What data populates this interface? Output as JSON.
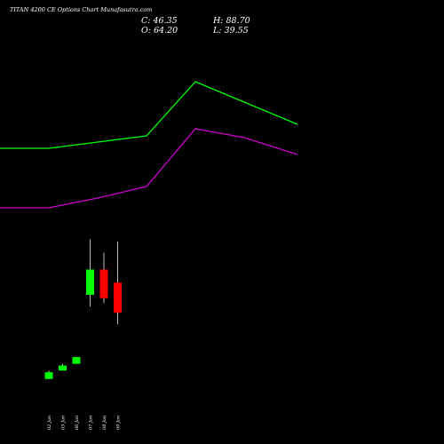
{
  "header": {
    "title": "TITAN 4200 CE Options Chart Munafasutra.com",
    "close": "C: 46.35",
    "high": "H: 88.70",
    "open": "O: 64.20",
    "low": "L: 39.55"
  },
  "chart_data": {
    "type": "candlestick",
    "title": "TITAN 4200 CE Options Chart Munafasutra.com",
    "categories": [
      "02 Jan",
      "03 Jan",
      "06 Jan",
      "07 Jan",
      "08 Jan",
      "09 Jan"
    ],
    "candles": [
      {
        "date": "02 Jan",
        "open": 7,
        "high": 12,
        "low": 7,
        "close": 11,
        "color": "#00ff00"
      },
      {
        "date": "03 Jan",
        "open": 12,
        "high": 16,
        "low": 12,
        "close": 15,
        "color": "#00ff00"
      },
      {
        "date": "06 Jan",
        "open": 16,
        "high": 20,
        "low": 16,
        "close": 20,
        "color": "#00ff00"
      },
      {
        "date": "07 Jan",
        "open": 57,
        "high": 90,
        "low": 50,
        "close": 72,
        "color": "#00ff00"
      },
      {
        "date": "08 Jan",
        "open": 72,
        "high": 82,
        "low": 52,
        "close": 55,
        "color": "#ff0000"
      },
      {
        "date": "09 Jan",
        "open": 64.2,
        "high": 88.7,
        "low": 39.55,
        "close": 46.35,
        "color": "#ff0000"
      }
    ],
    "lines": [
      {
        "color": "#00ff00",
        "values": [
          null,
          null,
          null,
          null,
          null,
          null
        ]
      },
      {
        "color": "#cc00cc",
        "values": [
          null,
          null,
          null,
          null,
          null,
          null
        ]
      }
    ],
    "colors": {
      "up": "#00ff00",
      "down": "#ff0000",
      "upper_line": "#00ff00",
      "lower_line": "#cc00cc",
      "background": "#000000"
    }
  }
}
